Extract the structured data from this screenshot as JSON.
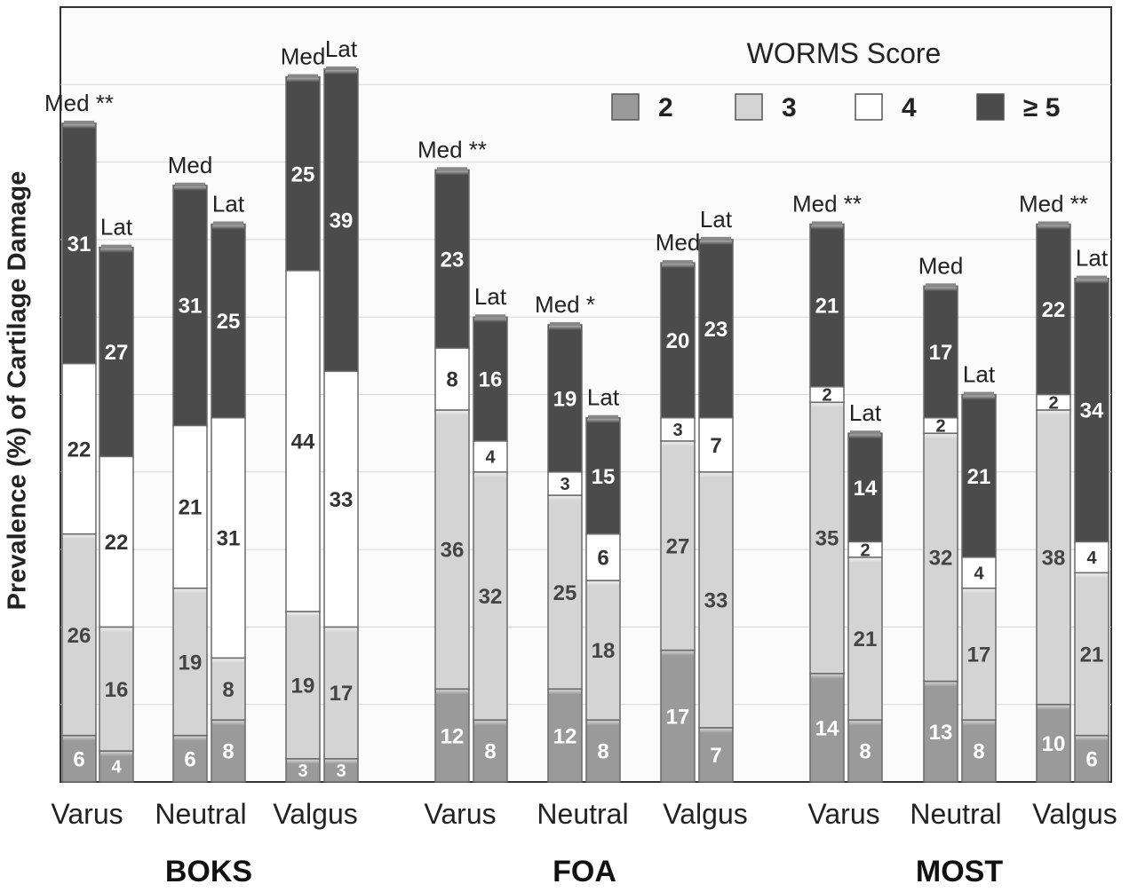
{
  "chart_data": {
    "type": "bar",
    "stacked": true,
    "ylabel": "Prevalence (%) of Cartilage Damage",
    "legend_title": "WORMS Score",
    "legend_position": "top-right",
    "grid": true,
    "series": [
      {
        "name": "2",
        "color": "#9a9a9a"
      },
      {
        "name": "3",
        "color": "#d4d4d4"
      },
      {
        "name": "4",
        "color": "#ffffff"
      },
      {
        "name": "≥ 5",
        "color": "#4b4b4b"
      }
    ],
    "groups": [
      {
        "name": "BOKS",
        "alignments": [
          {
            "name": "Varus",
            "bars": [
              {
                "label": "Med **",
                "values": [
                  6,
                  26,
                  22,
                  31
                ]
              },
              {
                "label": "Lat",
                "values": [
                  4,
                  16,
                  22,
                  27
                ]
              }
            ]
          },
          {
            "name": "Neutral",
            "bars": [
              {
                "label": "Med",
                "values": [
                  6,
                  19,
                  21,
                  31
                ]
              },
              {
                "label": "Lat",
                "values": [
                  8,
                  8,
                  31,
                  25
                ]
              }
            ]
          },
          {
            "name": "Valgus",
            "bars": [
              {
                "label": "Med",
                "values": [
                  3,
                  19,
                  44,
                  25
                ]
              },
              {
                "label": "Lat",
                "values": [
                  3,
                  17,
                  33,
                  39
                ]
              }
            ]
          }
        ]
      },
      {
        "name": "FOA",
        "alignments": [
          {
            "name": "Varus",
            "bars": [
              {
                "label": "Med **",
                "values": [
                  12,
                  36,
                  8,
                  23
                ]
              },
              {
                "label": "Lat",
                "values": [
                  8,
                  32,
                  4,
                  16
                ]
              }
            ]
          },
          {
            "name": "Neutral",
            "bars": [
              {
                "label": "Med *",
                "values": [
                  12,
                  25,
                  3,
                  19
                ]
              },
              {
                "label": "Lat",
                "values": [
                  8,
                  18,
                  6,
                  15
                ]
              }
            ]
          },
          {
            "name": "Valgus",
            "bars": [
              {
                "label": "Med",
                "values": [
                  17,
                  27,
                  3,
                  20
                ]
              },
              {
                "label": "Lat",
                "values": [
                  7,
                  33,
                  7,
                  23
                ]
              }
            ]
          }
        ]
      },
      {
        "name": "MOST",
        "alignments": [
          {
            "name": "Varus",
            "bars": [
              {
                "label": "Med **",
                "values": [
                  14,
                  35,
                  2,
                  21
                ]
              },
              {
                "label": "Lat",
                "values": [
                  8,
                  21,
                  2,
                  14
                ]
              }
            ]
          },
          {
            "name": "Neutral",
            "bars": [
              {
                "label": "Med",
                "values": [
                  13,
                  32,
                  2,
                  17
                ]
              },
              {
                "label": "Lat",
                "values": [
                  8,
                  17,
                  4,
                  21
                ]
              }
            ]
          },
          {
            "name": "Valgus",
            "bars": [
              {
                "label": "Med **",
                "values": [
                  10,
                  38,
                  2,
                  22
                ]
              },
              {
                "label": "Lat",
                "values": [
                  6,
                  21,
                  4,
                  34
                ]
              }
            ]
          }
        ]
      }
    ]
  }
}
